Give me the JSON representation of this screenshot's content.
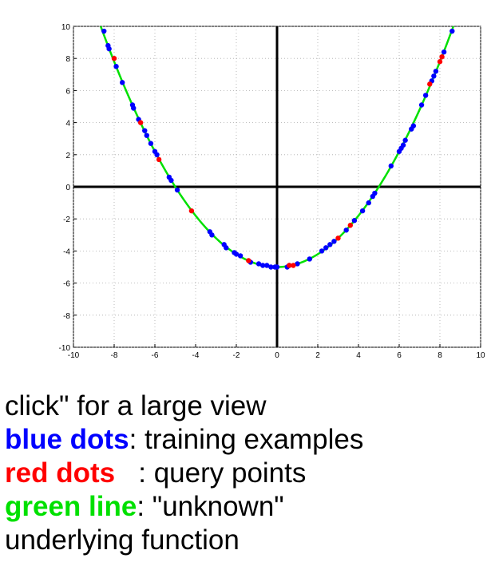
{
  "chart_data": {
    "type": "scatter",
    "xlim": [
      -10,
      10
    ],
    "ylim": [
      -10,
      10
    ],
    "x_ticks": [
      "-10",
      "-8",
      "-6",
      "-4",
      "-2",
      "0",
      "2",
      "4",
      "6",
      "8",
      "10"
    ],
    "y_ticks": [
      "-10",
      "-8",
      "-6",
      "-4",
      "-2",
      "0",
      "2",
      "4",
      "6",
      "8",
      "10"
    ],
    "grid": true,
    "curve": {
      "function": "y = 0.2*x^2 - 5",
      "color": "#00e000"
    },
    "series": [
      {
        "color": "#0000ff",
        "x": [
          -8.5,
          -8.3,
          -8.25,
          -7.9,
          -7.6,
          -7.1,
          -7.05,
          -6.8,
          -6.5,
          -6.4,
          -6.2,
          -6.0,
          -5.9,
          -5.3,
          -5.2,
          -4.9,
          -3.3,
          -3.2,
          -2.6,
          -2.5,
          -2.1,
          -2.0,
          -1.8,
          -1.3,
          -0.9,
          -0.7,
          -0.5,
          -0.3,
          -0.1,
          0.0,
          0.5,
          0.6,
          1.0,
          1.6,
          2.2,
          2.4,
          2.6,
          2.8,
          3.4,
          3.8,
          4.2,
          4.5,
          4.7,
          4.8,
          5.6,
          6.0,
          6.1,
          6.2,
          6.3,
          6.6,
          6.7,
          7.1,
          7.3,
          7.6,
          7.7,
          7.8,
          8.2,
          8.6
        ],
        "y": [
          9.7,
          8.8,
          8.6,
          7.5,
          6.5,
          5.1,
          4.9,
          4.2,
          3.5,
          3.2,
          2.7,
          2.2,
          2.0,
          0.6,
          0.4,
          -0.2,
          -2.8,
          -3.0,
          -3.6,
          -3.8,
          -4.1,
          -4.2,
          -4.3,
          -4.7,
          -4.8,
          -4.9,
          -4.9,
          -5.0,
          -5.0,
          -5.0,
          -5.0,
          -4.9,
          -4.8,
          -4.5,
          -4.0,
          -3.8,
          -3.6,
          -3.4,
          -2.7,
          -2.1,
          -1.5,
          -1.0,
          -0.6,
          -0.4,
          1.3,
          2.2,
          2.4,
          2.6,
          2.9,
          3.6,
          3.8,
          5.1,
          5.7,
          6.6,
          6.9,
          7.2,
          8.4,
          9.7
        ]
      },
      {
        "color": "#ff0000",
        "x": [
          -8.0,
          -6.7,
          -5.8,
          -4.2,
          -1.4,
          0.6,
          0.8,
          3.0,
          3.6,
          7.5,
          8.0,
          8.1
        ],
        "y": [
          8.0,
          4.0,
          1.7,
          -1.5,
          -4.6,
          -4.9,
          -4.9,
          -3.2,
          -2.4,
          6.4,
          7.8,
          8.1
        ]
      }
    ]
  },
  "caption": {
    "line1": "click\" for a large view",
    "blue_label": "blue dots",
    "blue_text": ": training examples",
    "red_label": "red dots",
    "red_text": "   : query points",
    "green_label": "green line",
    "green_text": ": \"unknown\"",
    "line5": "underlying function",
    "colors": {
      "blue": "#0000ff",
      "red": "#ff0000",
      "green": "#00e000"
    }
  }
}
